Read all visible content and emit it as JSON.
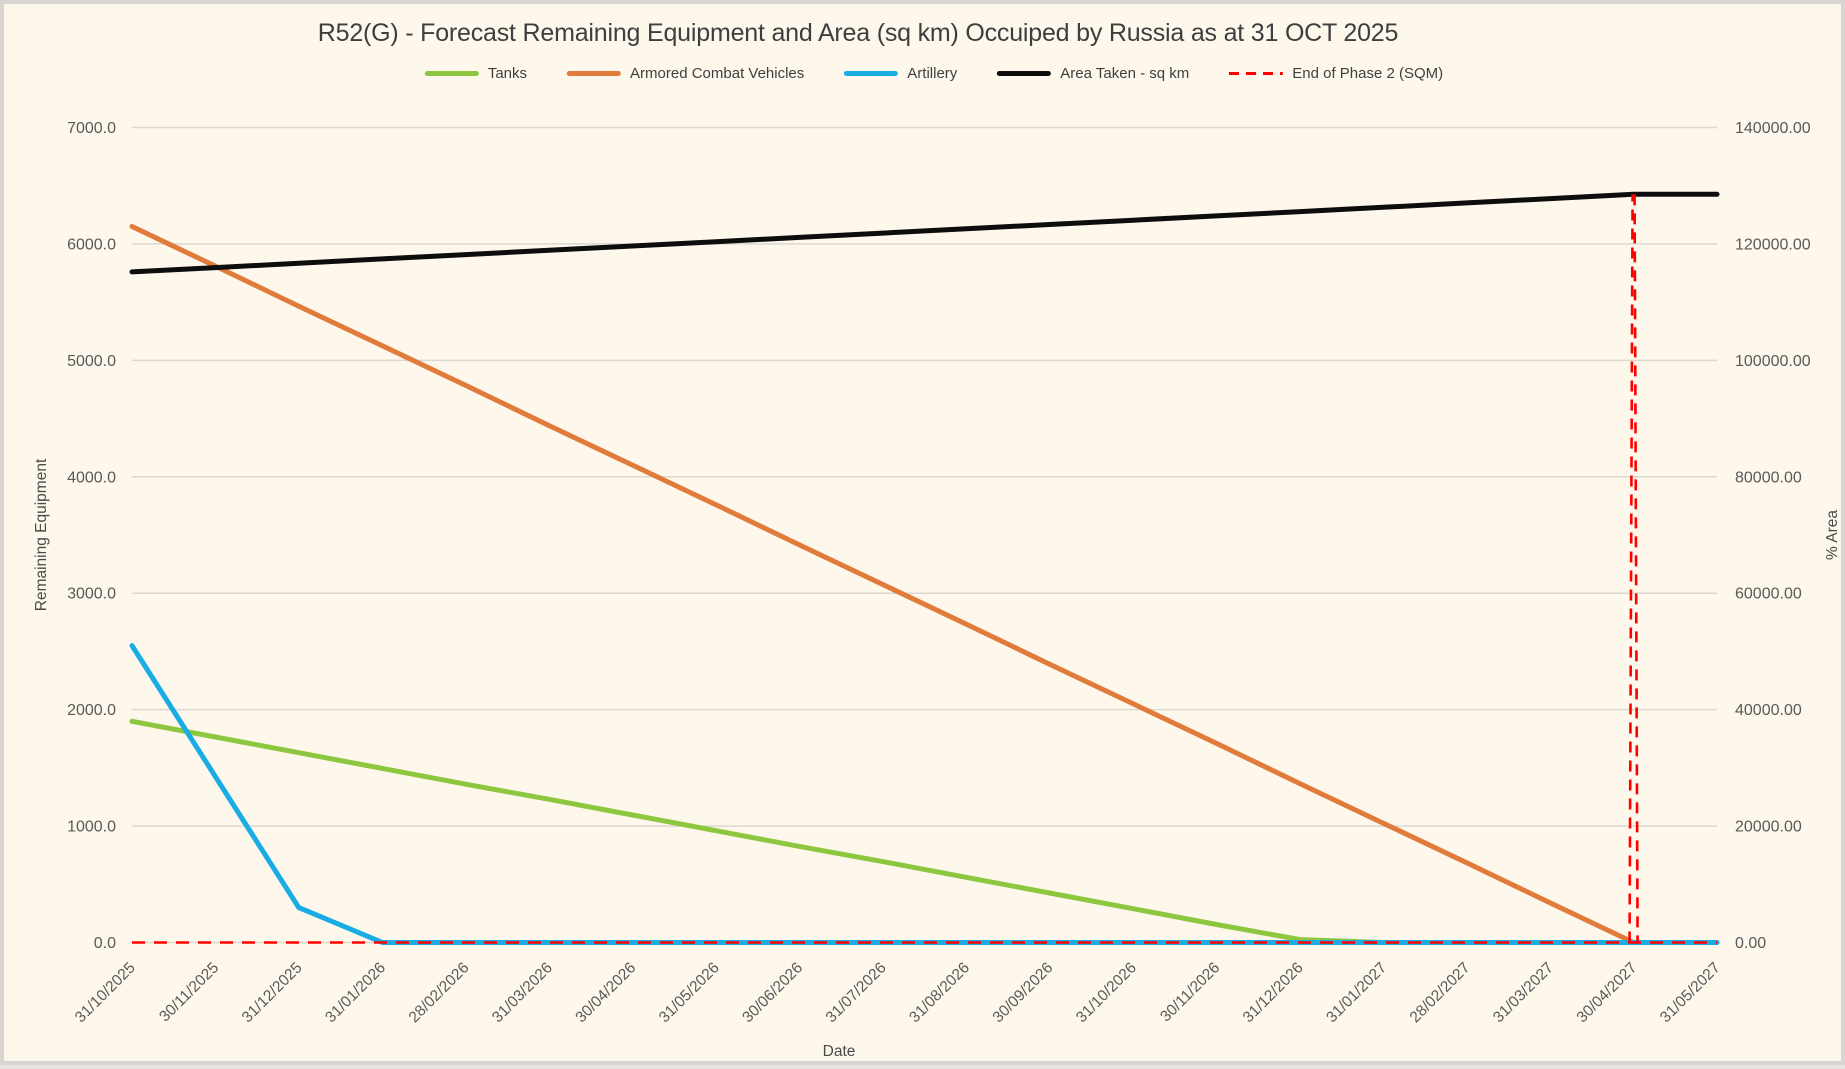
{
  "title": "R52(G) - Forecast Remaining Equipment and Area (sq km) Occuiped by Russia as at 31 OCT 2025",
  "colors": {
    "background": "#FDF8EB",
    "frame_border": "#D9D6D2",
    "gridline": "#DBD8D2",
    "title_text": "#3E3E3E",
    "tick_text": "#595959",
    "axis_title_text": "#4A4A4A",
    "tanks": "#8DC63F",
    "armored_combat_vehicles": "#E07B3B",
    "artillery": "#1AACE4",
    "area_taken": "#0D0D0D",
    "end_of_phase2": "#FF0000"
  },
  "chart_data": {
    "type": "line",
    "title": "R52(G) - Forecast Remaining Equipment and Area (sq km) Occuiped by Russia as at 31 OCT 2025",
    "grid": "horizontal",
    "legend_position": "top",
    "categories": [
      "31/10/2025",
      "30/11/2025",
      "31/12/2025",
      "31/01/2026",
      "28/02/2026",
      "31/03/2026",
      "30/04/2026",
      "31/05/2026",
      "30/06/2026",
      "31/07/2026",
      "31/08/2026",
      "30/09/2026",
      "31/10/2026",
      "30/11/2026",
      "31/12/2026",
      "31/01/2027",
      "28/02/2027",
      "31/03/2027",
      "30/04/2027",
      "31/05/2027"
    ],
    "axes": {
      "x": {
        "title": "Date"
      },
      "y_left": {
        "title": "Remaining Equipment",
        "min": 0,
        "max": 7000,
        "step": 1000,
        "tick_labels": [
          "0.0",
          "1000.0",
          "2000.0",
          "3000.0",
          "4000.0",
          "5000.0",
          "6000.0",
          "7000.0"
        ]
      },
      "y_right": {
        "title": "% Area",
        "min": 0,
        "max": 140000,
        "step": 20000,
        "tick_labels": [
          "0.00",
          "20000.00",
          "40000.00",
          "60000.00",
          "80000.00",
          "100000.00",
          "120000.00",
          "140000.00"
        ]
      }
    },
    "series": [
      {
        "name": "Tanks",
        "axis": "left",
        "color": "#8DC63F",
        "style": "solid",
        "values": [
          1900,
          1765,
          1630,
          1495,
          1360,
          1230,
          1095,
          960,
          825,
          695,
          560,
          425,
          290,
          155,
          25,
          0,
          0,
          0,
          0,
          0
        ]
      },
      {
        "name": "Armored Combat Vehicles",
        "axis": "left",
        "color": "#E07B3B",
        "style": "solid",
        "values": [
          6150,
          5810,
          5465,
          5125,
          4785,
          4440,
          4100,
          3760,
          3415,
          3075,
          2735,
          2390,
          2050,
          1710,
          1365,
          1025,
          685,
          340,
          0,
          0
        ]
      },
      {
        "name": "Artillery",
        "axis": "left",
        "color": "#1AACE4",
        "style": "solid",
        "values": [
          2550,
          1425,
          300,
          0,
          0,
          0,
          0,
          0,
          0,
          0,
          0,
          0,
          0,
          0,
          0,
          0,
          0,
          0,
          0,
          0
        ]
      },
      {
        "name": "Area Taken - sq km",
        "axis": "right",
        "color": "#0D0D0D",
        "style": "solid",
        "values": [
          115200,
          115940,
          116680,
          117420,
          118160,
          118900,
          119640,
          120380,
          121120,
          121860,
          122600,
          123340,
          124080,
          124820,
          125560,
          126300,
          127040,
          127780,
          128520,
          128520
        ]
      }
    ],
    "marker": {
      "name": "End of Phase 2 (SQM)",
      "color": "#FF0000",
      "style": "dashed",
      "baseline_value": 0,
      "spike_category": "30/04/2027",
      "spike_top_value": 128520
    },
    "legend_items": [
      {
        "label": "Tanks",
        "color": "#8DC63F",
        "dashed": false
      },
      {
        "label": "Armored Combat Vehicles",
        "color": "#E07B3B",
        "dashed": false
      },
      {
        "label": "Artillery",
        "color": "#1AACE4",
        "dashed": false
      },
      {
        "label": "Area Taken - sq km",
        "color": "#0D0D0D",
        "dashed": false
      },
      {
        "label": "End of Phase 2 (SQM)",
        "color": "#FF0000",
        "dashed": true
      }
    ]
  }
}
